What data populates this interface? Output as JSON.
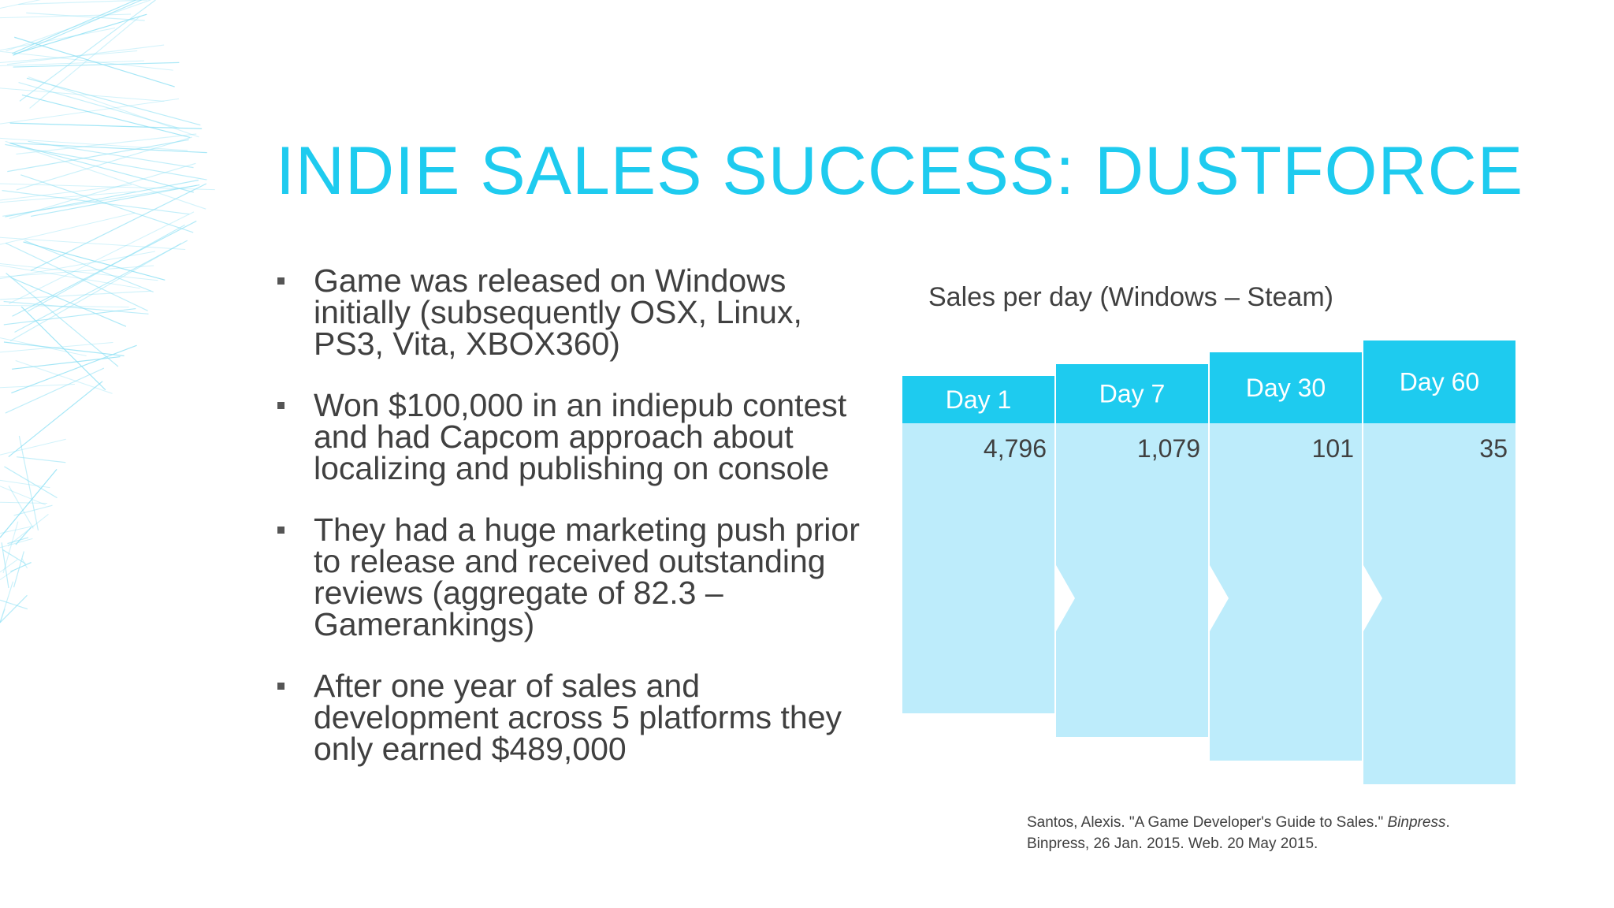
{
  "slide": {
    "title": "INDIE SALES SUCCESS: DUSTFORCE",
    "bullets": [
      "Game was released on Windows initially (subsequently OSX, Linux, PS3, Vita, XBOX360)",
      "Won $100,000 in an indiepub contest and had Capcom approach about localizing and publishing on console",
      "They had a huge marketing push prior to release and received outstanding reviews (aggregate of 82.3 – Gamerankings)",
      "After one year of sales and development across 5 platforms they only earned $489,000"
    ],
    "citation": {
      "part1": "Santos, Alexis. \"A Game Developer's Guide to Sales.\" ",
      "italic": "Binpress",
      "part2": ". Binpress, 26 Jan. 2015. Web. 20 May 2015."
    }
  },
  "colors": {
    "title": "#1ecbef",
    "header_fill": "#1ecbef",
    "body_fill": "#bdecfb",
    "decor_lines": "#8fe1f5"
  },
  "chart_data": {
    "type": "table",
    "title": "Sales per day (Windows – Steam)",
    "columns": [
      "Day 1",
      "Day 7",
      "Day 30",
      "Day 60"
    ],
    "values": [
      "4,796",
      "1,079",
      "101",
      "35"
    ]
  }
}
